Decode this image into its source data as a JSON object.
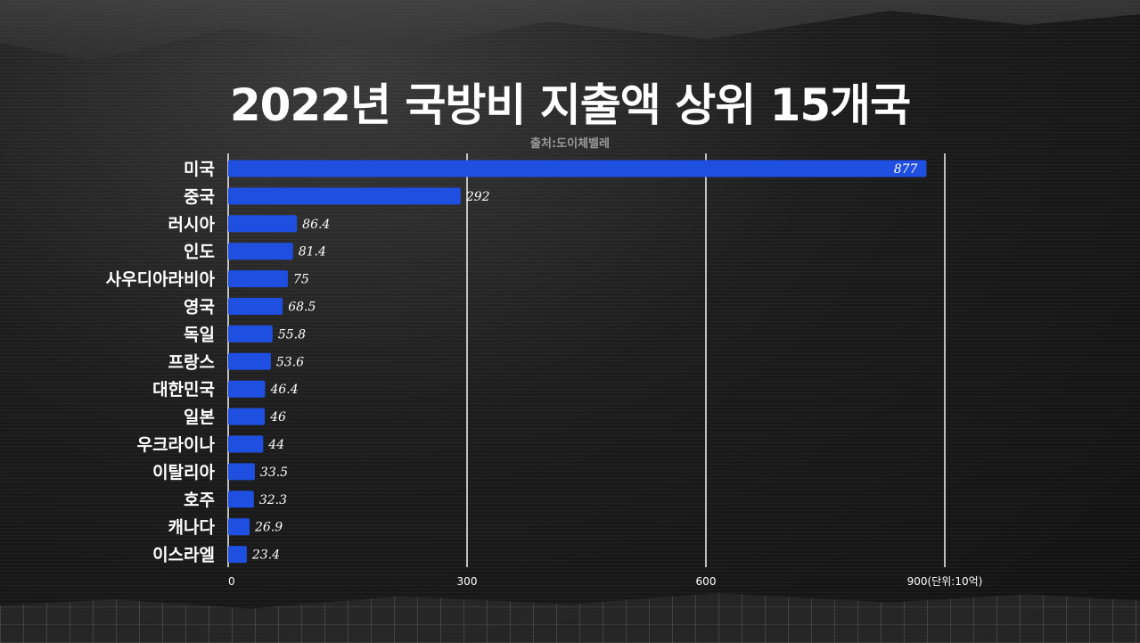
{
  "title": "2022년 국방비 지출액 상위 15개국",
  "source": "출처:도이체벨레",
  "chart_data": {
    "type": "bar",
    "orientation": "horizontal",
    "categories": [
      "미국",
      "중국",
      "러시아",
      "인도",
      "사우디아라비아",
      "영국",
      "독일",
      "프랑스",
      "대한민국",
      "일본",
      "우크라이나",
      "이탈리아",
      "호주",
      "캐나다",
      "이스라엘"
    ],
    "values": [
      877,
      292,
      86.4,
      81.4,
      75,
      68.5,
      55.8,
      53.6,
      46.4,
      46,
      44,
      33.5,
      32.3,
      26.9,
      23.4
    ],
    "value_labels": [
      "877",
      "292",
      "86.4",
      "81.4",
      "75",
      "68.5",
      "55.8",
      "53.6",
      "46.4",
      "46",
      "44",
      "33.5",
      "32.3",
      "26.9",
      "23.4"
    ],
    "xlim": [
      0,
      900
    ],
    "xticks": [
      0,
      300,
      600,
      900
    ],
    "xtick_labels": [
      "0",
      "300",
      "600",
      "900(단위:10억)"
    ],
    "grid": true,
    "bar_color": "#1e4fe0"
  }
}
